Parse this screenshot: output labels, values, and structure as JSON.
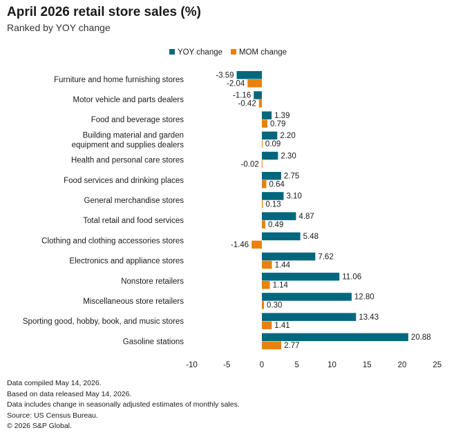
{
  "chart_data": {
    "type": "bar",
    "orientation": "horizontal",
    "title": "April 2026 retail store sales (%)",
    "subtitle": "Ranked by YOY change",
    "categories": [
      "Furniture and home furnishing stores",
      "Motor vehicle and parts dealers",
      "Food and beverage stores",
      "Building material and garden equipment and supplies dealers",
      "Health and personal care stores",
      "Food services and drinking places",
      "General merchandise stores",
      "Total retail and food services",
      "Clothing and clothing accessories stores",
      "Electronics and appliance stores",
      "Nonstore retailers",
      "Miscellaneous store retailers",
      "Sporting good, hobby, book, and music stores",
      "Gasoline stations"
    ],
    "series": [
      {
        "name": "YOY change",
        "color": "#00677f",
        "values": [
          -3.59,
          -1.16,
          1.39,
          2.2,
          2.3,
          2.75,
          3.1,
          4.87,
          5.48,
          7.62,
          11.06,
          12.8,
          13.43,
          20.88
        ]
      },
      {
        "name": "MOM change",
        "color": "#e8820c",
        "values": [
          -2.04,
          -0.42,
          0.79,
          0.09,
          -0.02,
          0.64,
          0.13,
          0.49,
          -1.46,
          1.44,
          1.14,
          0.3,
          1.41,
          2.77
        ]
      }
    ],
    "xlim": [
      -10,
      25
    ],
    "xticks": [
      -10,
      -5,
      0,
      5,
      10,
      15,
      20,
      25
    ],
    "legend": "top",
    "grid": false
  },
  "notes": [
    "Data compiled May 14, 2026.",
    "Based on data released May 14, 2026.",
    "Data includes change in seasonally adjusted estimates of monthly sales.",
    "Source: US Census Bureau.",
    "© 2026 S&P Global."
  ]
}
